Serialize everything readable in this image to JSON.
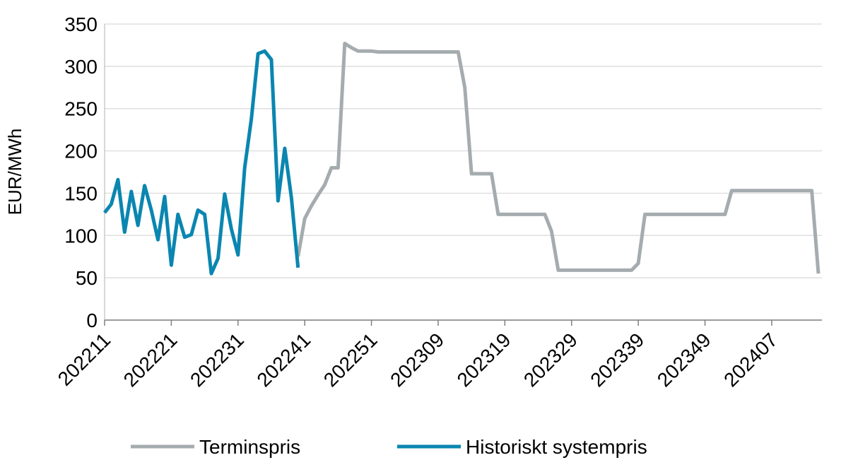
{
  "chart_data": {
    "type": "line",
    "y_label": "EUR/MWh",
    "categories": [
      "202211",
      null,
      null,
      null,
      null,
      null,
      null,
      null,
      null,
      null,
      "202221",
      null,
      null,
      null,
      null,
      null,
      null,
      null,
      null,
      null,
      "202231",
      null,
      null,
      null,
      null,
      null,
      null,
      null,
      null,
      null,
      "202241",
      null,
      null,
      null,
      null,
      null,
      null,
      null,
      null,
      null,
      "202251",
      null,
      null,
      null,
      null,
      null,
      null,
      null,
      null,
      null,
      "202309",
      null,
      null,
      null,
      null,
      null,
      null,
      null,
      null,
      null,
      "202319",
      null,
      null,
      null,
      null,
      null,
      null,
      null,
      null,
      null,
      "202329",
      null,
      null,
      null,
      null,
      null,
      null,
      null,
      null,
      null,
      "202339",
      null,
      null,
      null,
      null,
      null,
      null,
      null,
      null,
      null,
      "202349",
      null,
      null,
      null,
      null,
      null,
      null,
      null,
      null,
      null,
      "202407",
      null,
      null,
      null,
      null,
      null,
      null,
      null
    ],
    "series": [
      {
        "name": "Terminspris",
        "color": "#a5acaf",
        "values": [
          null,
          null,
          null,
          null,
          null,
          null,
          null,
          null,
          null,
          null,
          null,
          null,
          null,
          null,
          null,
          null,
          null,
          null,
          null,
          null,
          null,
          null,
          null,
          null,
          null,
          null,
          null,
          null,
          null,
          75,
          120,
          135,
          148,
          160,
          180,
          180,
          327,
          322,
          318,
          318,
          318,
          317,
          317,
          317,
          317,
          317,
          317,
          317,
          317,
          317,
          317,
          317,
          317,
          317,
          275,
          173,
          173,
          173,
          173,
          125,
          125,
          125,
          125,
          125,
          125,
          125,
          125,
          105,
          59,
          59,
          59,
          59,
          59,
          59,
          59,
          59,
          59,
          59,
          59,
          59,
          67,
          125,
          125,
          125,
          125,
          125,
          125,
          125,
          125,
          125,
          125,
          125,
          125,
          125,
          153,
          153,
          153,
          153,
          153,
          153,
          153,
          153,
          153,
          153,
          153,
          153,
          153,
          55
        ]
      },
      {
        "name": "Historiskt systempris",
        "color": "#0a86b0",
        "values": [
          127,
          137,
          166,
          104,
          152,
          112,
          159,
          130,
          95,
          146,
          65,
          125,
          98,
          101,
          130,
          125,
          55,
          73,
          149,
          108,
          77,
          180,
          238,
          315,
          318,
          308,
          141,
          203,
          145,
          62,
          null,
          null,
          null,
          null,
          null,
          null,
          null,
          null,
          null,
          null,
          null,
          null,
          null,
          null,
          null,
          null,
          null,
          null,
          null,
          null,
          null,
          null,
          null,
          null,
          null,
          null,
          null,
          null,
          null,
          null,
          null,
          null,
          null,
          null,
          null,
          null,
          null,
          null,
          null,
          null,
          null,
          null,
          null,
          null,
          null,
          null,
          null,
          null,
          null,
          null,
          null,
          null,
          null,
          null,
          null,
          null,
          null,
          null,
          null,
          null,
          null,
          null,
          null,
          null,
          null,
          null,
          null,
          null,
          null,
          null,
          null,
          null,
          null,
          null,
          null,
          null,
          null,
          null
        ]
      }
    ],
    "ylim": [
      0,
      350
    ],
    "yticks": [
      0,
      50,
      100,
      150,
      200,
      250,
      300,
      350
    ],
    "grid": true
  }
}
